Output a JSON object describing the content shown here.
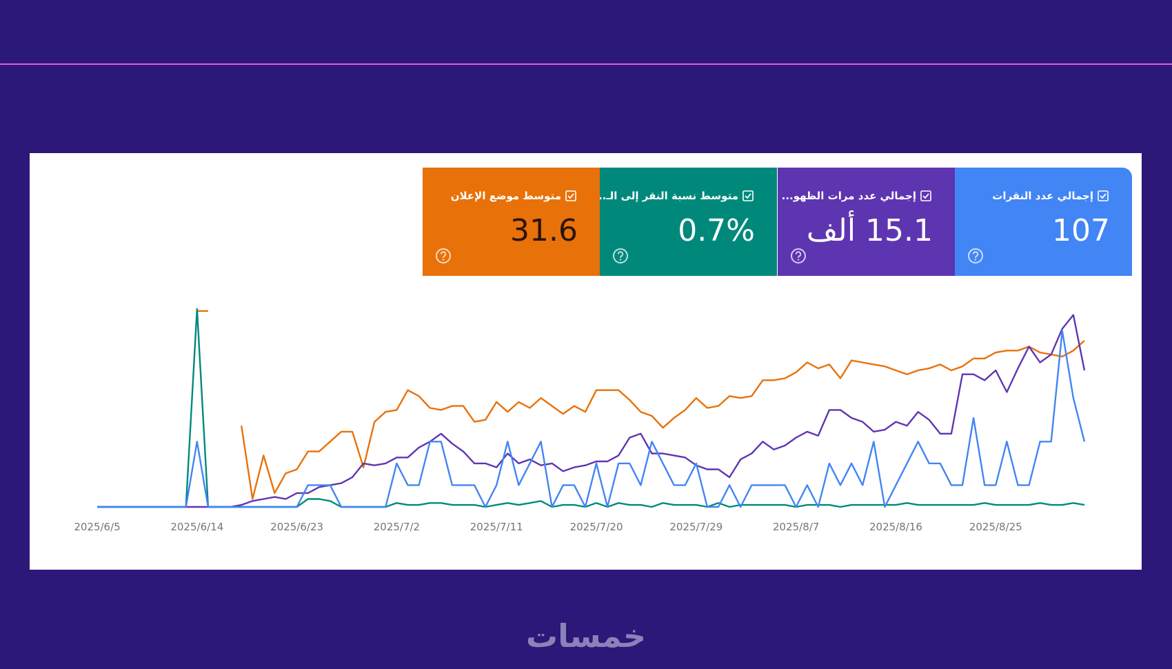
{
  "brand": "خمسات",
  "chart_data": {
    "type": "line",
    "x": [
      "2025/6/5",
      "2025/6/6",
      "2025/6/7",
      "2025/6/8",
      "2025/6/9",
      "2025/6/10",
      "2025/6/11",
      "2025/6/12",
      "2025/6/13",
      "2025/6/14",
      "2025/6/15",
      "2025/6/16",
      "2025/6/17",
      "2025/6/18",
      "2025/6/19",
      "2025/6/20",
      "2025/6/21",
      "2025/6/22",
      "2025/6/23",
      "2025/6/24",
      "2025/6/25",
      "2025/6/26",
      "2025/6/27",
      "2025/6/28",
      "2025/6/29",
      "2025/6/30",
      "2025/7/1",
      "2025/7/2",
      "2025/7/3",
      "2025/7/4",
      "2025/7/5",
      "2025/7/6",
      "2025/7/7",
      "2025/7/8",
      "2025/7/9",
      "2025/7/10",
      "2025/7/11",
      "2025/7/12",
      "2025/7/13",
      "2025/7/14",
      "2025/7/15",
      "2025/7/16",
      "2025/7/17",
      "2025/7/18",
      "2025/7/19",
      "2025/7/20",
      "2025/7/21",
      "2025/7/22",
      "2025/7/23",
      "2025/7/24",
      "2025/7/25",
      "2025/7/26",
      "2025/7/27",
      "2025/7/28",
      "2025/7/29",
      "2025/7/30",
      "2025/7/31",
      "2025/8/1",
      "2025/8/2",
      "2025/8/3",
      "2025/8/4",
      "2025/8/5",
      "2025/8/6",
      "2025/8/7",
      "2025/8/8",
      "2025/8/9",
      "2025/8/10",
      "2025/8/11",
      "2025/8/12",
      "2025/8/13",
      "2025/8/14",
      "2025/8/15",
      "2025/8/16",
      "2025/8/17",
      "2025/8/18",
      "2025/8/19",
      "2025/8/20",
      "2025/8/21",
      "2025/8/22",
      "2025/8/23",
      "2025/8/24",
      "2025/8/25",
      "2025/8/26",
      "2025/8/27",
      "2025/8/28",
      "2025/8/29",
      "2025/8/30",
      "2025/8/31",
      "2025/9/1",
      "2025/9/2"
    ],
    "xticks": [
      "2025/6/5",
      "2025/6/14",
      "2025/6/23",
      "2025/7/2",
      "2025/7/11",
      "2025/7/20",
      "2025/7/29",
      "2025/8/7",
      "2025/8/16",
      "2025/8/25"
    ],
    "ylim": [
      0,
      100
    ],
    "series": [
      {
        "name": "إجمالي عدد النقرات",
        "summary": "107",
        "color": "#4285f4",
        "values": [
          0,
          0,
          0,
          0,
          0,
          0,
          0,
          0,
          0,
          33,
          0,
          0,
          0,
          0,
          0,
          0,
          0,
          0,
          0,
          11,
          11,
          11,
          0,
          0,
          0,
          0,
          0,
          22,
          11,
          11,
          33,
          33,
          11,
          11,
          11,
          0,
          11,
          33,
          11,
          22,
          33,
          0,
          11,
          11,
          0,
          22,
          0,
          22,
          22,
          11,
          33,
          22,
          11,
          11,
          22,
          0,
          0,
          11,
          0,
          11,
          11,
          11,
          11,
          0,
          11,
          0,
          22,
          11,
          22,
          11,
          33,
          0,
          11,
          22,
          33,
          22,
          22,
          11,
          11,
          45,
          11,
          11,
          33,
          11,
          11,
          33,
          33,
          89,
          55,
          33
        ]
      },
      {
        "name": "إجمالي عدد مرات الظهو...",
        "summary": "15.1 ألف",
        "color": "#5e35b1",
        "values": [
          0,
          0,
          0,
          0,
          0,
          0,
          0,
          0,
          0,
          0,
          0,
          0,
          0,
          1,
          3,
          4,
          5,
          4,
          7,
          7,
          10,
          11,
          12,
          15,
          22,
          21,
          22,
          25,
          25,
          30,
          33,
          37,
          32,
          28,
          22,
          22,
          20,
          27,
          22,
          24,
          21,
          22,
          18,
          20,
          21,
          23,
          23,
          26,
          35,
          37,
          27,
          27,
          26,
          25,
          21,
          19,
          19,
          15,
          24,
          27,
          33,
          29,
          31,
          35,
          38,
          36,
          49,
          49,
          45,
          43,
          38,
          39,
          43,
          41,
          48,
          44,
          37,
          37,
          67,
          67,
          64,
          69,
          58,
          70,
          81,
          73,
          77,
          90,
          97,
          69
        ]
      },
      {
        "name": "متوسط نسبة النقر إلى الـ...",
        "summary": "0.7%",
        "color": "#00897b",
        "values": [
          0,
          0,
          0,
          0,
          0,
          0,
          0,
          0,
          0,
          100,
          0,
          0,
          0,
          0,
          0,
          0,
          0,
          0,
          0,
          4,
          4,
          3,
          0,
          0,
          0,
          0,
          0,
          2,
          1,
          1,
          2,
          2,
          1,
          1,
          1,
          0,
          1,
          2,
          1,
          2,
          3,
          0,
          1,
          1,
          0,
          2,
          0,
          2,
          1,
          1,
          0,
          2,
          1,
          1,
          1,
          0,
          2,
          0,
          1,
          1,
          1,
          1,
          1,
          0,
          1,
          1,
          1,
          0,
          1,
          1,
          1,
          1,
          1,
          2,
          1,
          1,
          1,
          1,
          1,
          1,
          2,
          1,
          1,
          1,
          1,
          2,
          1,
          1,
          2,
          1
        ]
      },
      {
        "name": "متوسط موضع الإعلان",
        "summary": "31.6",
        "color": "#e8710a",
        "values": [
          null,
          null,
          null,
          null,
          null,
          null,
          null,
          null,
          null,
          99,
          99,
          null,
          null,
          41,
          4,
          26,
          7,
          17,
          19,
          28,
          28,
          33,
          38,
          38,
          20,
          43,
          48,
          49,
          59,
          56,
          50,
          49,
          51,
          51,
          43,
          44,
          53,
          48,
          53,
          50,
          55,
          51,
          47,
          51,
          48,
          59,
          59,
          59,
          54,
          48,
          46,
          40,
          45,
          49,
          55,
          50,
          51,
          56,
          55,
          56,
          64,
          64,
          65,
          68,
          73,
          70,
          72,
          65,
          74,
          73,
          72,
          71,
          69,
          67,
          69,
          70,
          72,
          69,
          71,
          75,
          75,
          78,
          79,
          79,
          81,
          78,
          77,
          76,
          79,
          84
        ]
      }
    ]
  }
}
